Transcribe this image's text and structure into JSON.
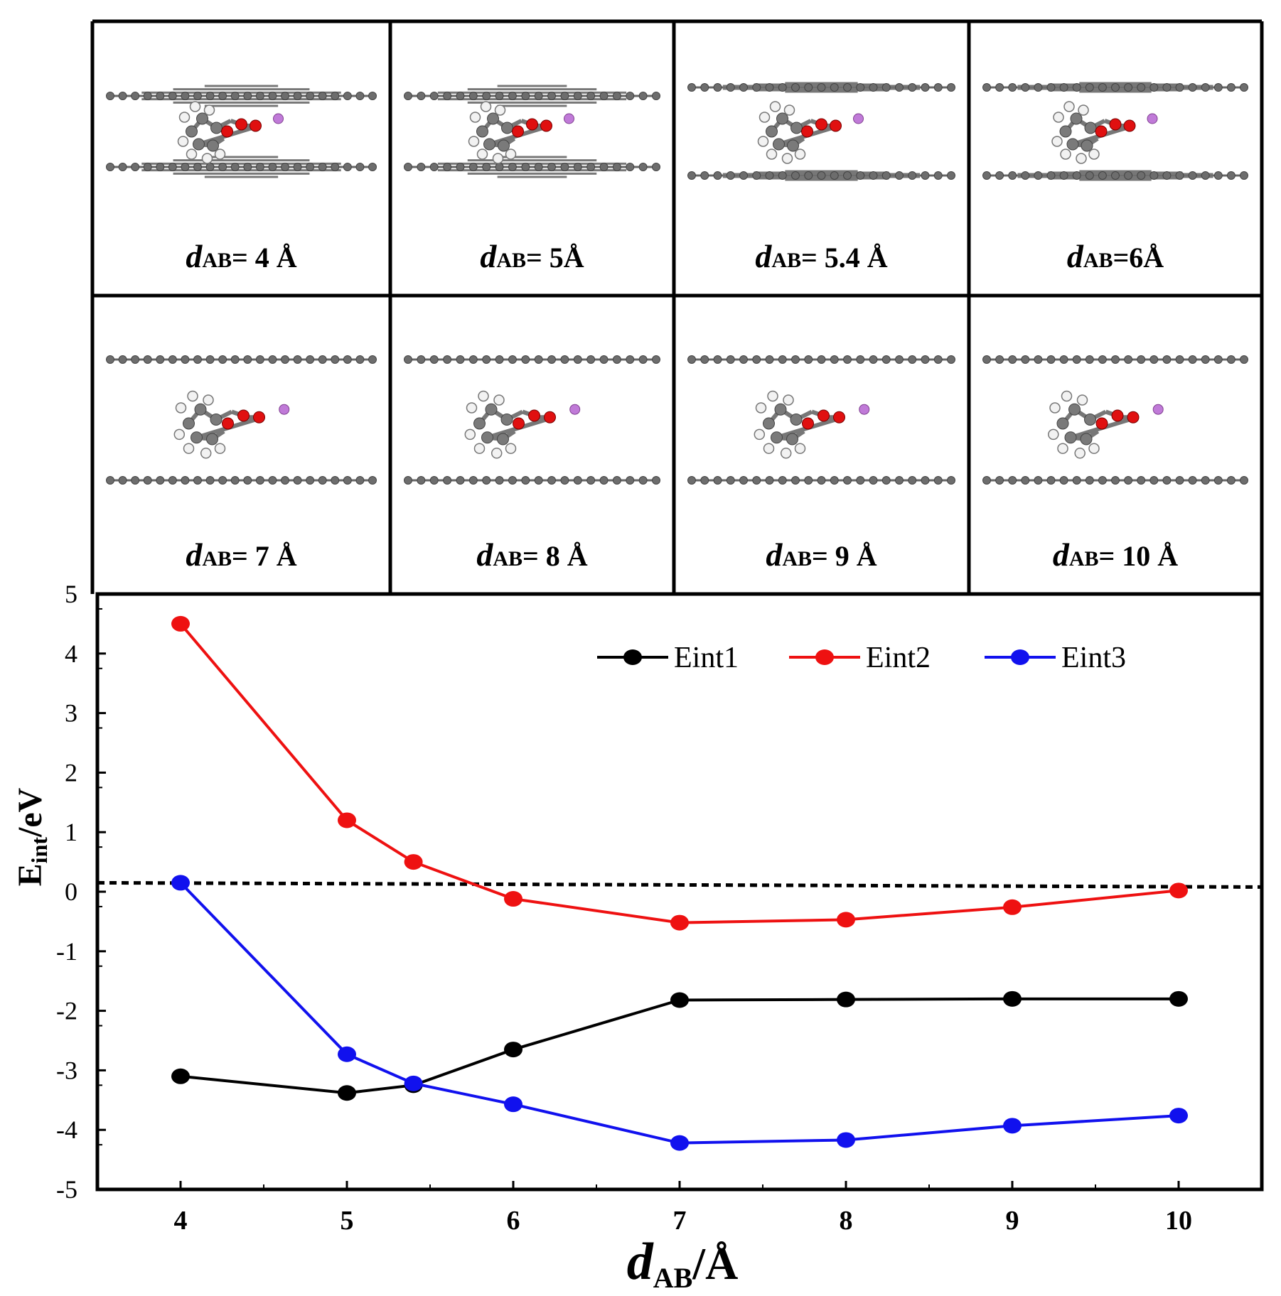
{
  "panels": [
    {
      "prefix": "d",
      "sub": "AB",
      "rest": "= 4 Å",
      "layer_gap": "compressed"
    },
    {
      "prefix": "d",
      "sub": "AB",
      "rest": "= 5Å",
      "layer_gap": "compressed"
    },
    {
      "prefix": "d",
      "sub": "AB",
      "rest": "= 5.4 Å",
      "layer_gap": "medium"
    },
    {
      "prefix": "d",
      "sub": "AB",
      "rest": "=6Å",
      "layer_gap": "medium"
    },
    {
      "prefix": "d",
      "sub": "AB",
      "rest": "= 7 Å",
      "layer_gap": "wide"
    },
    {
      "prefix": "d",
      "sub": "AB",
      "rest": "= 8 Å",
      "layer_gap": "wide"
    },
    {
      "prefix": "d",
      "sub": "AB",
      "rest": "= 9 Å",
      "layer_gap": "wide"
    },
    {
      "prefix": "d",
      "sub": "AB",
      "rest": "= 10 Å",
      "layer_gap": "wide"
    }
  ],
  "chart_data": {
    "type": "line",
    "title": "",
    "xlabel": {
      "prefix": "d",
      "sub": "AB",
      "rest": "/Å"
    },
    "ylabel": {
      "prefix": "E",
      "sub": "int",
      "rest": "/eV"
    },
    "xlim": [
      3.5,
      10.5
    ],
    "ylim": [
      -5,
      5
    ],
    "xticks": [
      4,
      5,
      6,
      7,
      8,
      9,
      10
    ],
    "yticks": [
      5,
      4,
      3,
      2,
      1,
      0,
      -1,
      -2,
      -3,
      -4,
      -5
    ],
    "reference_line": {
      "y": 0.15,
      "style": "dashed",
      "color": "#000000"
    },
    "series": [
      {
        "name": "Eint1",
        "color": "#000000",
        "x": [
          4,
          5,
          5.4,
          6,
          7,
          8,
          9,
          10
        ],
        "y": [
          -3.1,
          -3.38,
          -3.25,
          -2.65,
          -1.82,
          -1.81,
          -1.8,
          -1.8
        ]
      },
      {
        "name": "Eint2",
        "color": "#ee1111",
        "x": [
          4,
          5,
          5.4,
          6,
          7,
          8,
          9,
          10
        ],
        "y": [
          4.5,
          1.2,
          0.5,
          -0.12,
          -0.52,
          -0.47,
          -0.26,
          0.02
        ]
      },
      {
        "name": "Eint3",
        "color": "#1111ee",
        "x": [
          4,
          5,
          5.4,
          6,
          7,
          8,
          9,
          10
        ],
        "y": [
          0.15,
          -2.73,
          -3.22,
          -3.57,
          -4.22,
          -4.17,
          -3.93,
          -3.76
        ]
      }
    ],
    "legend_position": "top-right"
  }
}
